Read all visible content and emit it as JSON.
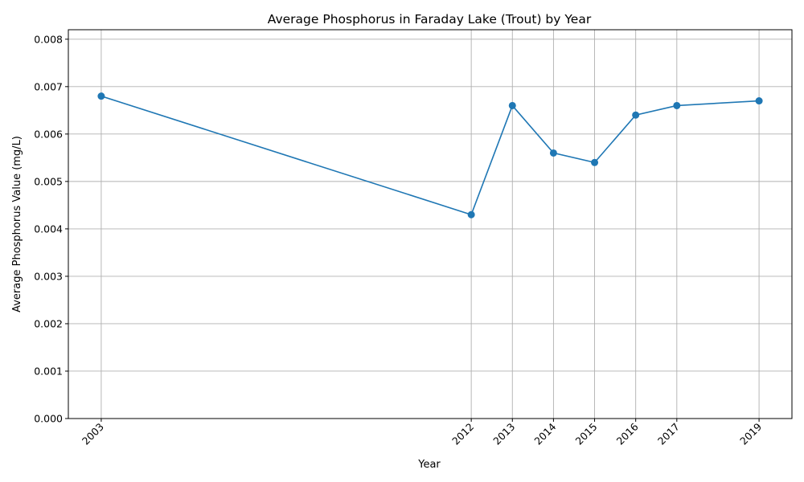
{
  "chart_data": {
    "type": "line",
    "title": "Average Phosphorus in Faraday Lake (Trout) by Year",
    "xlabel": "Year",
    "ylabel": "Average Phosphorus Value (mg/L)",
    "x": [
      2003,
      2012,
      2013,
      2014,
      2015,
      2016,
      2017,
      2019
    ],
    "y": [
      0.0068,
      0.0043,
      0.0066,
      0.0056,
      0.0054,
      0.0064,
      0.0066,
      0.0067
    ],
    "xticks": [
      "2003",
      "2012",
      "2013",
      "2014",
      "2015",
      "2016",
      "2017",
      "2019"
    ],
    "yticks": [
      "0.000",
      "0.001",
      "0.002",
      "0.003",
      "0.004",
      "0.005",
      "0.006",
      "0.007",
      "0.008"
    ],
    "ylim": [
      0,
      0.0082
    ],
    "xlim": [
      2002.2,
      2019.8
    ],
    "grid": true,
    "marker": "circle",
    "color": "#1f77b4"
  }
}
